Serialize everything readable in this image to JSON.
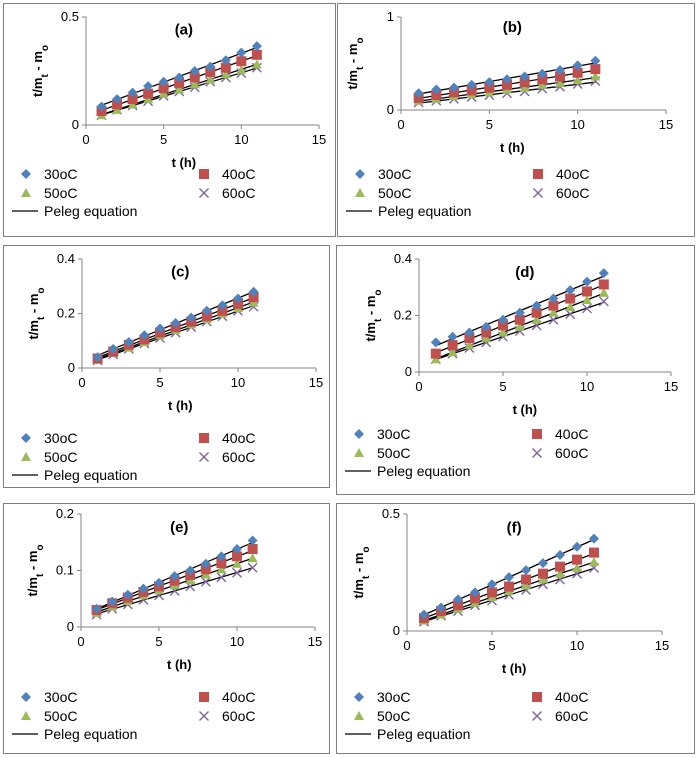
{
  "legend_labels": {
    "s30": "30oC",
    "s40": "40oC",
    "s50": "50oC",
    "s60": "60oC",
    "fit": "Peleg equation"
  },
  "colors": {
    "s30": "#4f81bd",
    "s40": "#c0504d",
    "s50": "#9bbb59",
    "s60": "#8064a2",
    "fit": "#000000"
  },
  "chart_data": [
    {
      "type": "scatter",
      "title": "(a)",
      "xlabel": "t (h)",
      "ylabel": "t/mt - mo",
      "xlim": [
        0,
        15
      ],
      "ylim": [
        0,
        0.5
      ],
      "xticks": [
        "0",
        "5",
        "10",
        "15"
      ],
      "yticks": [
        "0",
        "0.5"
      ],
      "x": [
        1,
        2,
        3,
        4,
        5,
        6,
        7,
        8,
        9,
        10,
        11
      ],
      "series": [
        {
          "name": "30oC",
          "values": [
            0.085,
            0.12,
            0.15,
            0.18,
            0.2,
            0.22,
            0.25,
            0.27,
            0.3,
            0.335,
            0.365
          ]
        },
        {
          "name": "40oC",
          "values": [
            0.065,
            0.095,
            0.12,
            0.145,
            0.17,
            0.195,
            0.22,
            0.245,
            0.265,
            0.295,
            0.325
          ]
        },
        {
          "name": "50oC",
          "values": [
            0.045,
            0.07,
            0.095,
            0.12,
            0.145,
            0.165,
            0.19,
            0.21,
            0.235,
            0.255,
            0.28
          ]
        },
        {
          "name": "60oC",
          "values": [
            0.045,
            0.07,
            0.09,
            0.11,
            0.135,
            0.155,
            0.175,
            0.2,
            0.22,
            0.24,
            0.265
          ]
        }
      ]
    },
    {
      "type": "scatter",
      "title": "(b)",
      "xlabel": "t (h)",
      "ylabel": "t/mt - mo",
      "xlim": [
        0,
        15
      ],
      "ylim": [
        0,
        1
      ],
      "xticks": [
        "0",
        "5",
        "10",
        "15"
      ],
      "yticks": [
        "0",
        "1"
      ],
      "x": [
        1,
        2,
        3,
        4,
        5,
        6,
        7,
        8,
        9,
        10,
        11
      ],
      "series": [
        {
          "name": "30oC",
          "values": [
            0.18,
            0.22,
            0.24,
            0.27,
            0.3,
            0.33,
            0.36,
            0.39,
            0.43,
            0.48,
            0.53
          ]
        },
        {
          "name": "40oC",
          "values": [
            0.13,
            0.16,
            0.19,
            0.21,
            0.24,
            0.27,
            0.3,
            0.33,
            0.36,
            0.4,
            0.44
          ]
        },
        {
          "name": "50oC",
          "values": [
            0.1,
            0.12,
            0.15,
            0.17,
            0.19,
            0.22,
            0.24,
            0.27,
            0.29,
            0.32,
            0.36
          ]
        },
        {
          "name": "60oC",
          "values": [
            0.08,
            0.1,
            0.12,
            0.14,
            0.16,
            0.18,
            0.2,
            0.23,
            0.25,
            0.28,
            0.31
          ]
        }
      ]
    },
    {
      "type": "scatter",
      "title": "(c)",
      "xlabel": "t (h)",
      "ylabel": "t/mt - mo",
      "xlim": [
        0,
        15
      ],
      "ylim": [
        0,
        0.4
      ],
      "xticks": [
        "0",
        "5",
        "10",
        "15"
      ],
      "yticks": [
        "0",
        "0.2",
        "0.4"
      ],
      "x": [
        1,
        2,
        3,
        4,
        5,
        6,
        7,
        8,
        9,
        10,
        11
      ],
      "series": [
        {
          "name": "30oC",
          "values": [
            0.04,
            0.07,
            0.095,
            0.12,
            0.145,
            0.165,
            0.185,
            0.21,
            0.23,
            0.255,
            0.28
          ]
        },
        {
          "name": "40oC",
          "values": [
            0.035,
            0.06,
            0.085,
            0.105,
            0.13,
            0.15,
            0.17,
            0.19,
            0.21,
            0.235,
            0.26
          ]
        },
        {
          "name": "50oC",
          "values": [
            0.03,
            0.055,
            0.075,
            0.095,
            0.12,
            0.14,
            0.16,
            0.18,
            0.2,
            0.22,
            0.24
          ]
        },
        {
          "name": "60oC",
          "values": [
            0.028,
            0.05,
            0.07,
            0.09,
            0.11,
            0.13,
            0.15,
            0.17,
            0.19,
            0.21,
            0.225
          ]
        }
      ]
    },
    {
      "type": "scatter",
      "title": "(d)",
      "xlabel": "t (h)",
      "ylabel": "t/mt - mo",
      "xlim": [
        0,
        15
      ],
      "ylim": [
        0,
        0.4
      ],
      "xticks": [
        "0",
        "5",
        "10",
        "15"
      ],
      "yticks": [
        "0",
        "0.2",
        "0.4"
      ],
      "x": [
        1,
        2,
        3,
        4,
        5,
        6,
        7,
        8,
        9,
        10,
        11
      ],
      "series": [
        {
          "name": "30oC",
          "values": [
            0.105,
            0.125,
            0.14,
            0.16,
            0.185,
            0.21,
            0.235,
            0.26,
            0.29,
            0.32,
            0.35
          ]
        },
        {
          "name": "40oC",
          "values": [
            0.065,
            0.095,
            0.12,
            0.14,
            0.165,
            0.185,
            0.21,
            0.235,
            0.26,
            0.285,
            0.31
          ]
        },
        {
          "name": "50oC",
          "values": [
            0.045,
            0.07,
            0.095,
            0.12,
            0.14,
            0.16,
            0.185,
            0.21,
            0.23,
            0.255,
            0.28
          ]
        },
        {
          "name": "60oC",
          "values": [
            0.045,
            0.065,
            0.085,
            0.105,
            0.125,
            0.145,
            0.165,
            0.185,
            0.205,
            0.225,
            0.25
          ]
        }
      ]
    },
    {
      "type": "scatter",
      "title": "(e)",
      "xlabel": "t (h)",
      "ylabel": "t/mt - mo",
      "xlim": [
        0,
        15
      ],
      "ylim": [
        0,
        0.2
      ],
      "xticks": [
        "0",
        "5",
        "10",
        "15"
      ],
      "yticks": [
        "0",
        "0.1",
        "0.2"
      ],
      "x": [
        1,
        2,
        3,
        4,
        5,
        6,
        7,
        8,
        9,
        10,
        11
      ],
      "series": [
        {
          "name": "30oC",
          "values": [
            0.032,
            0.045,
            0.057,
            0.068,
            0.078,
            0.09,
            0.1,
            0.112,
            0.125,
            0.138,
            0.153
          ]
        },
        {
          "name": "40oC",
          "values": [
            0.03,
            0.042,
            0.052,
            0.062,
            0.072,
            0.082,
            0.092,
            0.102,
            0.113,
            0.125,
            0.138
          ]
        },
        {
          "name": "50oC",
          "values": [
            0.025,
            0.036,
            0.046,
            0.056,
            0.065,
            0.074,
            0.083,
            0.093,
            0.102,
            0.112,
            0.122
          ]
        },
        {
          "name": "60oC",
          "values": [
            0.022,
            0.032,
            0.04,
            0.048,
            0.056,
            0.064,
            0.072,
            0.08,
            0.088,
            0.096,
            0.105
          ]
        }
      ]
    },
    {
      "type": "scatter",
      "title": "(f)",
      "xlabel": "t (h)",
      "ylabel": "t/mt - mo",
      "xlim": [
        0,
        15
      ],
      "ylim": [
        0,
        0.5
      ],
      "xticks": [
        "0",
        "5",
        "10",
        "15"
      ],
      "yticks": [
        "0",
        "0.5"
      ],
      "x": [
        1,
        2,
        3,
        4,
        5,
        6,
        7,
        8,
        9,
        10,
        11
      ],
      "series": [
        {
          "name": "30oC",
          "values": [
            0.07,
            0.1,
            0.135,
            0.165,
            0.2,
            0.23,
            0.26,
            0.29,
            0.325,
            0.36,
            0.395
          ]
        },
        {
          "name": "40oC",
          "values": [
            0.055,
            0.085,
            0.11,
            0.14,
            0.165,
            0.19,
            0.22,
            0.245,
            0.275,
            0.305,
            0.335
          ]
        },
        {
          "name": "50oC",
          "values": [
            0.045,
            0.07,
            0.095,
            0.12,
            0.145,
            0.17,
            0.195,
            0.22,
            0.245,
            0.27,
            0.295
          ]
        },
        {
          "name": "60oC",
          "values": [
            0.04,
            0.065,
            0.085,
            0.11,
            0.13,
            0.155,
            0.175,
            0.2,
            0.22,
            0.245,
            0.27
          ]
        }
      ]
    }
  ]
}
